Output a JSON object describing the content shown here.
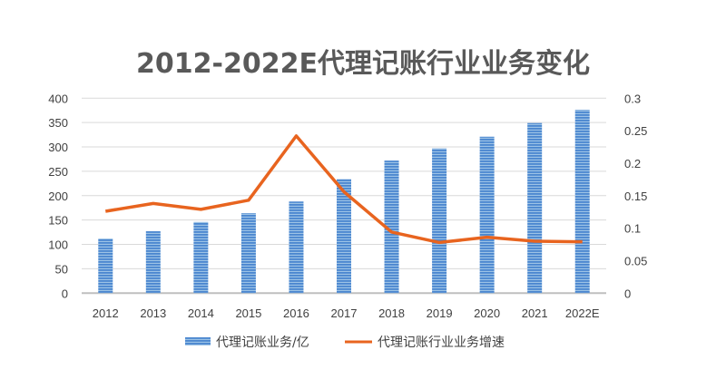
{
  "chart_data": {
    "type": "bar+line",
    "title": "2012-2022E代理记账行业业务变化",
    "categories": [
      "2012",
      "2013",
      "2014",
      "2015",
      "2016",
      "2017",
      "2018",
      "2019",
      "2020",
      "2021",
      "2022E"
    ],
    "series": [
      {
        "name": "代理记账业务/亿",
        "type": "bar",
        "axis": "left",
        "color": "#5B9BD5",
        "values": [
          112,
          127,
          146,
          164,
          188,
          234,
          272,
          297,
          321,
          349,
          376
        ]
      },
      {
        "name": "代理记账行业业务增速",
        "type": "line",
        "axis": "right",
        "color": "#E8641F",
        "values": [
          0.126,
          0.138,
          0.129,
          0.143,
          0.242,
          0.156,
          0.094,
          0.078,
          0.086,
          0.08,
          0.079
        ]
      }
    ],
    "y_left": {
      "range": [
        0,
        400
      ],
      "ticks": [
        "0",
        "50",
        "100",
        "150",
        "200",
        "250",
        "300",
        "350",
        "400"
      ]
    },
    "y_right": {
      "range": [
        0,
        0.3
      ],
      "ticks": [
        "0",
        "0.05",
        "0.1",
        "0.15",
        "0.2",
        "0.25",
        "0.3"
      ]
    },
    "grid": true,
    "legend": "bottom"
  }
}
